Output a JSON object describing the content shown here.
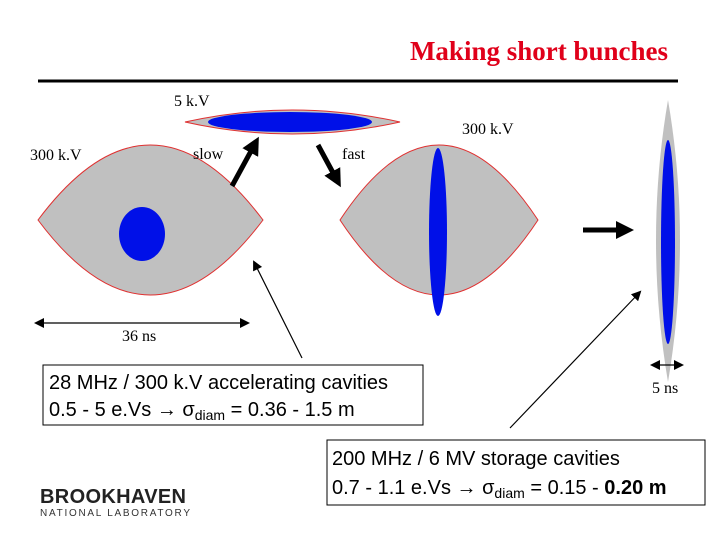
{
  "header": {
    "title": "Making short bunches"
  },
  "labels": {
    "top_voltage": "5 k.V",
    "left_voltage": "300 k.V",
    "right_voltage": "300 k.V",
    "slow": "slow",
    "fast": "fast",
    "width_left": "36 ns",
    "width_right": "5 ns"
  },
  "box_accelerating": {
    "line1": "28 MHz / 300 k.V accelerating cavities",
    "line2_pre": "0.5 - 5 e.Vs → σ",
    "line2_sub": "diam",
    "line2_post": " = 0.36 - 1.5 m"
  },
  "box_storage": {
    "line1": "200 MHz / 6 MV storage cavities",
    "line2_pre": "0.7 - 1.1 e.Vs → σ",
    "line2_sub": "diam",
    "line2_post": " = 0.15 - ",
    "line2_bold": "0.20 m"
  },
  "logo": {
    "name": "BROOKHAVEN",
    "sub": "NATIONAL LABORATORY"
  }
}
